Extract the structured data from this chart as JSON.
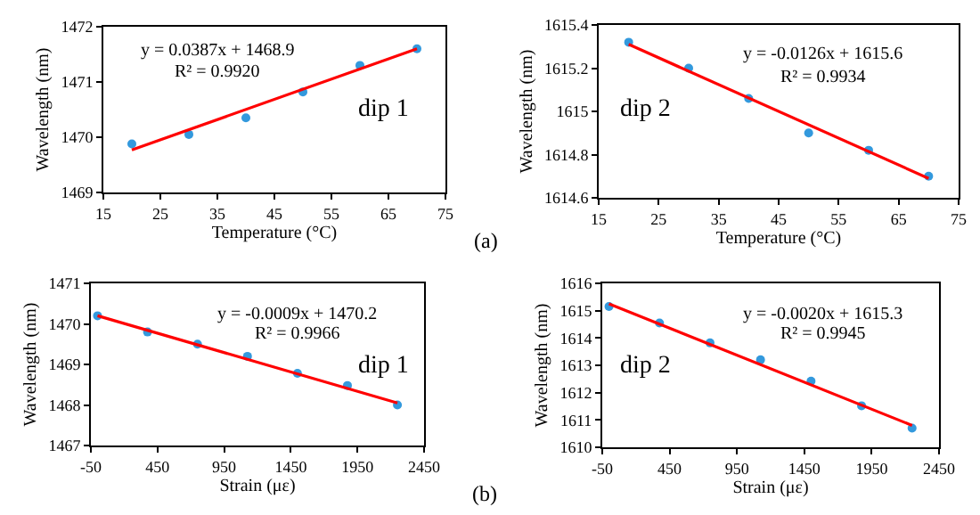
{
  "chart_data": [
    {
      "type": "scatter",
      "xlabel": "Temperature (°C)",
      "ylabel": "Wavelength (nm)",
      "xlim": [
        15,
        75
      ],
      "xticks": [
        15,
        25,
        35,
        45,
        55,
        65,
        75
      ],
      "ylim": [
        1469,
        1472
      ],
      "yticks": [
        1469,
        1470,
        1471,
        1472
      ],
      "series": [
        {
          "color": "#3399dd",
          "marker": "circle",
          "x": [
            20,
            30,
            40,
            50,
            60,
            70
          ],
          "values": [
            1469.88,
            1470.05,
            1470.35,
            1470.82,
            1471.3,
            1471.6
          ]
        },
        {
          "type": "line",
          "marker": "none",
          "color": "#ff0000",
          "x": [
            20,
            70
          ],
          "values": [
            1469.77,
            1471.6
          ]
        }
      ],
      "annotations": [
        "y = 0.0387x + 1468.9",
        "R² = 0.9920",
        "dip 1",
        "(a)"
      ]
    },
    {
      "type": "scatter",
      "xlabel": "Temperature (°C)",
      "ylabel": "Wavelength (nm)",
      "xlim": [
        15,
        75
      ],
      "xticks": [
        15,
        25,
        35,
        45,
        55,
        65,
        75
      ],
      "ylim": [
        1614.6,
        1615.4
      ],
      "yticks": [
        1614.6,
        1614.8,
        1615,
        1615.2,
        1615.4
      ],
      "series": [
        {
          "color": "#3399dd",
          "marker": "circle",
          "x": [
            20,
            30,
            40,
            50,
            60,
            70
          ],
          "values": [
            1615.32,
            1615.2,
            1615.06,
            1614.9,
            1614.82,
            1614.7
          ]
        },
        {
          "type": "line",
          "marker": "none",
          "color": "#ff0000",
          "x": [
            20,
            70
          ],
          "values": [
            1615.31,
            1614.69
          ]
        }
      ],
      "annotations": [
        "y = -0.0126x + 1615.6",
        "R² = 0.9934",
        "dip 2"
      ]
    },
    {
      "type": "scatter",
      "xlabel": "Strain (με)",
      "ylabel": "Wavelength (nm)",
      "xlim": [
        -50,
        2450
      ],
      "xticks": [
        -50,
        450,
        950,
        1450,
        1950,
        2450
      ],
      "ylim": [
        1467,
        1471
      ],
      "yticks": [
        1467,
        1468,
        1469,
        1470,
        1471
      ],
      "series": [
        {
          "color": "#3399dd",
          "marker": "circle",
          "x": [
            0,
            375,
            750,
            1125,
            1500,
            1875,
            2250
          ],
          "values": [
            1470.2,
            1469.8,
            1469.5,
            1469.2,
            1468.78,
            1468.48,
            1468.0
          ]
        },
        {
          "type": "line",
          "marker": "none",
          "color": "#ff0000",
          "x": [
            0,
            2250
          ],
          "values": [
            1470.2,
            1468.05
          ]
        }
      ],
      "annotations": [
        "y = -0.0009x + 1470.2",
        "R² = 0.9966",
        "dip 1",
        "(b)"
      ]
    },
    {
      "type": "scatter",
      "xlabel": "Strain (με)",
      "ylabel": "Wavelength (nm)",
      "xlim": [
        -50,
        2450
      ],
      "xticks": [
        -50,
        450,
        950,
        1450,
        1950,
        2450
      ],
      "ylim": [
        1610,
        1616
      ],
      "yticks": [
        1610,
        1611,
        1612,
        1613,
        1614,
        1615,
        1616
      ],
      "series": [
        {
          "color": "#3399dd",
          "marker": "circle",
          "x": [
            0,
            375,
            750,
            1125,
            1500,
            1875,
            2250
          ],
          "values": [
            1615.15,
            1614.55,
            1613.82,
            1613.2,
            1612.42,
            1611.52,
            1610.7
          ]
        },
        {
          "type": "line",
          "marker": "none",
          "color": "#ff0000",
          "x": [
            0,
            2250
          ],
          "values": [
            1615.25,
            1610.8
          ]
        }
      ],
      "annotations": [
        "y = -0.0020x + 1615.3",
        "R² = 0.9945",
        "dip 2"
      ]
    }
  ]
}
